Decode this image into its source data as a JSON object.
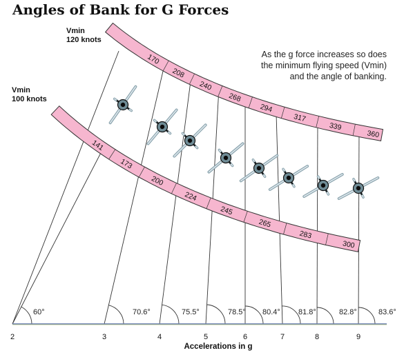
{
  "title": "Angles of Bank for G Forces",
  "upper_band": {
    "label_line1": "Vmin",
    "label_line2": "120 knots",
    "values": [
      "170",
      "208",
      "240",
      "268",
      "294",
      "317",
      "339",
      "360"
    ]
  },
  "lower_band": {
    "label_line1": "Vmin",
    "label_line2": "100 knots",
    "values": [
      "141",
      "173",
      "200",
      "224",
      "245",
      "265",
      "283",
      "300"
    ]
  },
  "note": "As the g force increases so does the minimum flying speed (Vmin) and the angle of banking.",
  "angles": [
    "60°",
    "70.6°",
    "75.5°",
    "78.5°",
    "80.4°",
    "81.8°",
    "82.8°",
    "83.6°"
  ],
  "axis": {
    "ticks": [
      "2",
      "3",
      "4",
      "5",
      "6",
      "7",
      "8",
      "9"
    ],
    "label": "Accelerations in g"
  },
  "colors": {
    "band_fill": "#f6b6cf",
    "band_stroke": "#333333",
    "line": "#333333",
    "axis": "#444444"
  },
  "aircraft_icon": "bank-aircraft-icon"
}
